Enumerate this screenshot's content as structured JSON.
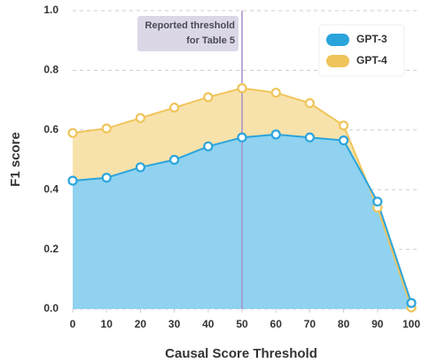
{
  "chart_data": {
    "type": "area",
    "x_label": "Causal Score Threshold",
    "y_label": "F1 score",
    "x": [
      0,
      10,
      20,
      30,
      40,
      50,
      60,
      70,
      80,
      90,
      100
    ],
    "series": [
      {
        "name": "GPT-4",
        "color": "#f0c45a",
        "fill": "#f8e2ab",
        "values": [
          0.59,
          0.605,
          0.64,
          0.675,
          0.71,
          0.74,
          0.725,
          0.69,
          0.615,
          0.34,
          0.005
        ]
      },
      {
        "name": "GPT-3",
        "color": "#2ba4dc",
        "fill": "#90d2f0",
        "values": [
          0.43,
          0.44,
          0.475,
          0.5,
          0.545,
          0.575,
          0.585,
          0.575,
          0.565,
          0.36,
          0.02
        ]
      }
    ],
    "legend_order": [
      1,
      0
    ],
    "annotation": {
      "x": 50,
      "lines": [
        "Reported threshold",
        "for Table 5"
      ],
      "color": "#a58fcb"
    },
    "xlim": [
      0,
      100
    ],
    "xticks": [
      0,
      10,
      20,
      30,
      40,
      50,
      60,
      70,
      80,
      90,
      100
    ],
    "ylim": [
      0,
      1
    ],
    "yticks": [
      {
        "value": 0,
        "label": "0.0"
      },
      {
        "value": 0.2,
        "label": "0.2"
      },
      {
        "value": 0.4,
        "label": "0.4"
      },
      {
        "value": 0.6,
        "label": "0.6"
      },
      {
        "value": 0.8,
        "label": "0.8"
      },
      {
        "value": 1,
        "label": "1.0"
      }
    ],
    "grid": true,
    "legend": "upper right"
  }
}
